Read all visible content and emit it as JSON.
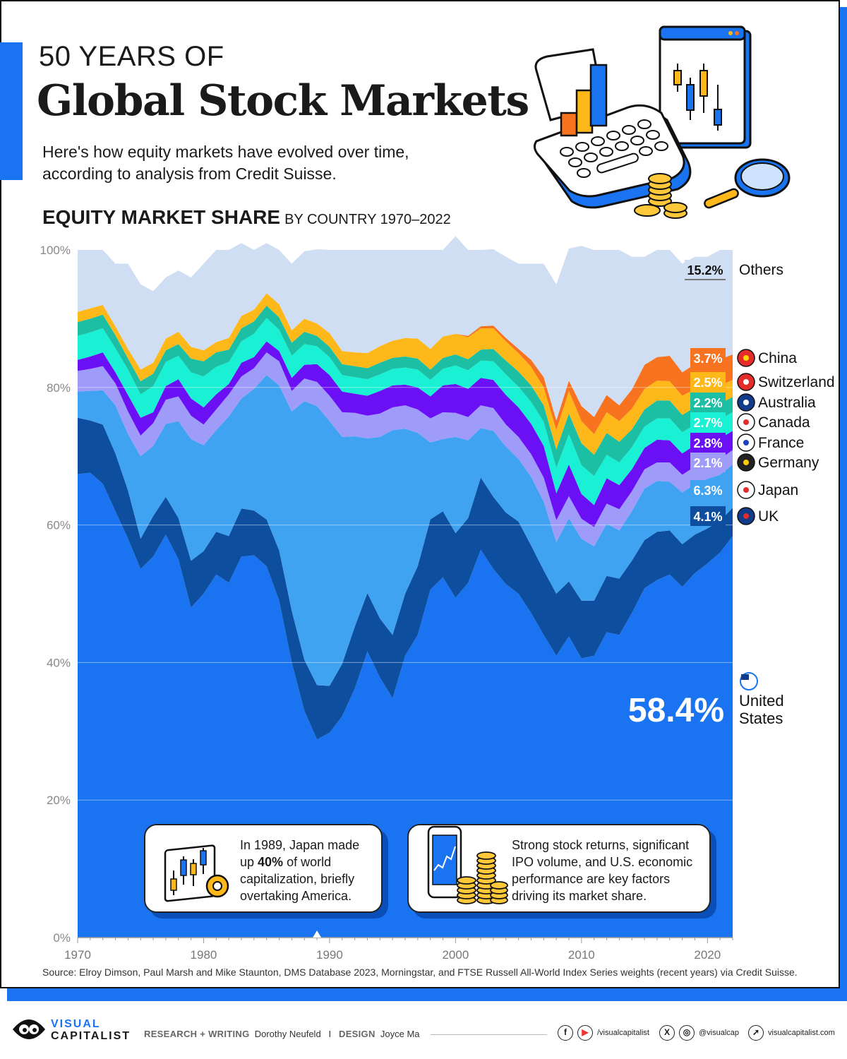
{
  "header": {
    "kicker": "50 YEARS OF",
    "title": "Global Stock Markets",
    "subtitle": "Here's how equity markets have evolved over time, according to analysis from Credit Suisse."
  },
  "chart_heading": {
    "main": "EQUITY MARKET SHARE",
    "sub": "BY COUNTRY 1970–2022"
  },
  "callouts": {
    "japan": {
      "pre": "In 1989, Japan made up ",
      "bold": "40%",
      "post": " of world capitalization, briefly overtaking America."
    },
    "us": {
      "text": "Strong stock returns, significant IPO volume, and U.S. economic performance are key factors driving its market share."
    }
  },
  "source": "Source: Elroy Dimson, Paul Marsh and Mike Staunton, DMS Database 2023, Morningstar, and FTSE Russell All-World Index Series weights (recent years) via Credit Suisse.",
  "footer": {
    "logo_line1": "VISUAL",
    "logo_line2": "CAPITALIST",
    "research_label": "RESEARCH + WRITING",
    "research_name": "Dorothy Neufeld",
    "separator": "I",
    "design_label": "DESIGN",
    "design_name": "Joyce Ma",
    "handle1": "/visualcapitalist",
    "handle2": "@visualcap",
    "website": "visualcapitalist.com"
  },
  "chart_data": {
    "type": "area",
    "stacked": true,
    "x": [
      1970,
      1971,
      1972,
      1973,
      1974,
      1975,
      1976,
      1977,
      1978,
      1979,
      1980,
      1981,
      1982,
      1983,
      1984,
      1985,
      1986,
      1987,
      1988,
      1989,
      1990,
      1991,
      1992,
      1993,
      1994,
      1995,
      1996,
      1997,
      1998,
      1999,
      2000,
      2001,
      2002,
      2003,
      2004,
      2005,
      2006,
      2007,
      2008,
      2009,
      2010,
      2011,
      2012,
      2013,
      2014,
      2015,
      2016,
      2017,
      2018,
      2019,
      2020,
      2021,
      2022
    ],
    "ylim": [
      0,
      100
    ],
    "yticks": [
      "0%",
      "20%",
      "40%",
      "60%",
      "80%",
      "100%"
    ],
    "xticks": [
      "1970",
      "1980",
      "1990",
      "2000",
      "2010",
      "2020"
    ],
    "grid": true,
    "series": [
      {
        "name": "United States",
        "label": "58.4%",
        "color": "#1a73f0",
        "values": [
          67.4,
          67.6,
          66,
          62,
          58,
          53.6,
          55.4,
          58.6,
          55,
          48,
          50,
          52.8,
          51.6,
          55.4,
          55.6,
          54,
          49,
          40,
          33,
          28.8,
          29.8,
          32.2,
          36.2,
          41.6,
          37.8,
          34.8,
          41,
          44,
          50.6,
          52.4,
          49.4,
          51.6,
          56.4,
          53.6,
          51.4,
          50,
          47.2,
          44,
          41,
          43.8,
          40.6,
          41,
          44.4,
          44,
          47.2,
          50.8,
          52,
          52.8,
          51,
          53,
          54.4,
          56,
          58.4
        ]
      },
      {
        "name": "UK",
        "label": "4.1%",
        "color": "#0d4f9e",
        "values": [
          8.2,
          7.6,
          8.6,
          8.4,
          7,
          4.4,
          5.9,
          5.5,
          6,
          6.8,
          6.2,
          6.2,
          6.8,
          7,
          6.5,
          6.8,
          7.3,
          7.5,
          7.4,
          7.9,
          6.8,
          7.6,
          9,
          8.5,
          8.6,
          9.2,
          9,
          10,
          10.2,
          9.6,
          9.4,
          9.4,
          10.5,
          10.5,
          10.4,
          10.5,
          9.8,
          9.4,
          9,
          8,
          8.4,
          8,
          8.2,
          8.2,
          7.6,
          7,
          7,
          6.4,
          6.2,
          5.6,
          5.1,
          4.6,
          4.1
        ]
      },
      {
        "name": "Japan",
        "label": "6.3%",
        "color": "#3fa3f2",
        "values": [
          3.8,
          4.3,
          5,
          7,
          8.2,
          12,
          10.2,
          10.6,
          14.1,
          17.7,
          15.4,
          14.8,
          17.4,
          16,
          17.7,
          21,
          24,
          29,
          37.6,
          40.6,
          38.5,
          33,
          27.7,
          22.5,
          26.4,
          29.8,
          24,
          19.4,
          11.2,
          10.5,
          14,
          11.3,
          7.2,
          9.6,
          9.6,
          9.1,
          10,
          10,
          7.5,
          9.2,
          9,
          7.9,
          7.6,
          7,
          7.2,
          7.5,
          7.4,
          7.1,
          7.5,
          7.4,
          7.2,
          6.7,
          6.3
        ]
      },
      {
        "name": "Germany",
        "label": "2.1%",
        "color": "#9e9cf8",
        "values": [
          3,
          3.2,
          3.5,
          3.2,
          3.3,
          3,
          3.3,
          3.5,
          3.6,
          3.4,
          3,
          3,
          3.2,
          3.2,
          3,
          3.3,
          3.5,
          3,
          3.3,
          3.5,
          3.7,
          3.6,
          3.4,
          3.3,
          3.4,
          3.3,
          3.4,
          3.4,
          3.5,
          3.9,
          3.5,
          3.4,
          3.3,
          3.3,
          3.2,
          3.2,
          3.3,
          3.5,
          3.2,
          3.2,
          2.9,
          2.8,
          2.9,
          3.1,
          2.9,
          2.8,
          2.7,
          2.8,
          2.6,
          2.5,
          2.4,
          2.3,
          2.1
        ]
      },
      {
        "name": "France",
        "label": "2.8%",
        "color": "#6b0ff5",
        "values": [
          1.6,
          1.8,
          2,
          1.6,
          2.4,
          2.6,
          1.6,
          2,
          2.5,
          2.5,
          2.5,
          2.2,
          1.5,
          2,
          1.6,
          1.6,
          1.5,
          1.9,
          2,
          2.6,
          3,
          3,
          2.8,
          2.9,
          3.3,
          3.2,
          3,
          3.2,
          3.2,
          3.9,
          4.2,
          4.1,
          4,
          4.1,
          4.3,
          4.3,
          4.4,
          4.6,
          3.9,
          4.6,
          3.6,
          3.2,
          3.7,
          3.5,
          3.2,
          3.1,
          3.3,
          3.2,
          3.1,
          3.1,
          3,
          3,
          2.8
        ]
      },
      {
        "name": "Canada",
        "label": "2.7%",
        "color": "#19f0d4",
        "values": [
          3.5,
          3.5,
          3.5,
          3.5,
          3.7,
          3.4,
          3.8,
          3.5,
          3.4,
          3.8,
          4.5,
          4,
          3.2,
          3.1,
          3.4,
          3.4,
          3.1,
          3.2,
          3,
          2.6,
          2.6,
          2.4,
          2.4,
          2.4,
          2.4,
          2.4,
          2.5,
          2.6,
          2.4,
          2.4,
          2.7,
          2.7,
          2.5,
          2.7,
          3,
          3,
          3.2,
          3.5,
          3.7,
          4.4,
          4.2,
          4.2,
          3.4,
          3.3,
          3.2,
          3.1,
          3.1,
          3.2,
          3.1,
          3,
          2.9,
          2.8,
          2.7
        ]
      },
      {
        "name": "Australia",
        "label": "2.2%",
        "color": "#1cbfa3",
        "values": [
          2,
          2,
          2,
          1.9,
          1.6,
          1.9,
          1.8,
          1.7,
          1.7,
          2,
          2.2,
          2.1,
          1.8,
          1.9,
          1.8,
          1.8,
          1.8,
          1.9,
          1.8,
          1.5,
          1.5,
          1.6,
          1.6,
          1.6,
          1.7,
          1.6,
          1.6,
          1.6,
          1.5,
          1.6,
          1.6,
          1.6,
          1.6,
          1.8,
          2,
          2.2,
          2.4,
          2.4,
          2.7,
          3,
          3.2,
          3.1,
          3.2,
          3,
          2.6,
          2.5,
          2.6,
          2.6,
          2.5,
          2.5,
          2.4,
          2.3,
          2.2
        ]
      },
      {
        "name": "Switzerland",
        "label": "2.5%",
        "color": "#ffb81a",
        "values": [
          1.5,
          1.5,
          1.4,
          1.3,
          1.4,
          1.7,
          1.6,
          1.7,
          1.8,
          1.7,
          1.6,
          1.5,
          1.7,
          1.8,
          1.7,
          1.8,
          1.9,
          1.8,
          1.9,
          1.8,
          2,
          1.9,
          2,
          2.2,
          2.4,
          2.5,
          2.7,
          2.9,
          3,
          3.1,
          3,
          3.2,
          3.1,
          3,
          2.8,
          2.7,
          2.7,
          2.6,
          2.8,
          3.3,
          3.2,
          3,
          3,
          3,
          3,
          3,
          2.9,
          2.8,
          2.8,
          2.7,
          2.6,
          2.6,
          2.5
        ]
      },
      {
        "name": "China",
        "label": "3.7%",
        "color": "#f7731f",
        "values": [
          0,
          0,
          0,
          0,
          0,
          0,
          0,
          0,
          0,
          0,
          0,
          0,
          0,
          0,
          0,
          0,
          0,
          0,
          0,
          0,
          0,
          0,
          0,
          0,
          0,
          0,
          0,
          0,
          0,
          0,
          0,
          0.2,
          0.3,
          0.4,
          0.5,
          0.6,
          1,
          1.5,
          1.4,
          1.5,
          2.2,
          2.5,
          2.5,
          2.3,
          2.8,
          3.5,
          3.4,
          3.7,
          3.4,
          3.6,
          3.9,
          3.8,
          3.7
        ]
      },
      {
        "name": "Others",
        "label": "15.2%",
        "color": "#cfdef2",
        "values": [
          9,
          8.5,
          8,
          9.1,
          12.4,
          12.4,
          10.4,
          8.9,
          8.9,
          10.1,
          12.6,
          13.4,
          12.8,
          10.6,
          8.7,
          7.3,
          7.9,
          9.7,
          9.8,
          10.8,
          12.1,
          14.7,
          14.9,
          15,
          14,
          13.2,
          12.8,
          12.9,
          14.4,
          12.6,
          14.2,
          12.5,
          11.1,
          11.1,
          11.8,
          12.4,
          14,
          16.5,
          19.8,
          19.2,
          23.3,
          24.3,
          21.1,
          22.6,
          19.3,
          15.7,
          15.6,
          15.4,
          15.8,
          15.6,
          15.1,
          15.9,
          15.2
        ]
      }
    ]
  }
}
